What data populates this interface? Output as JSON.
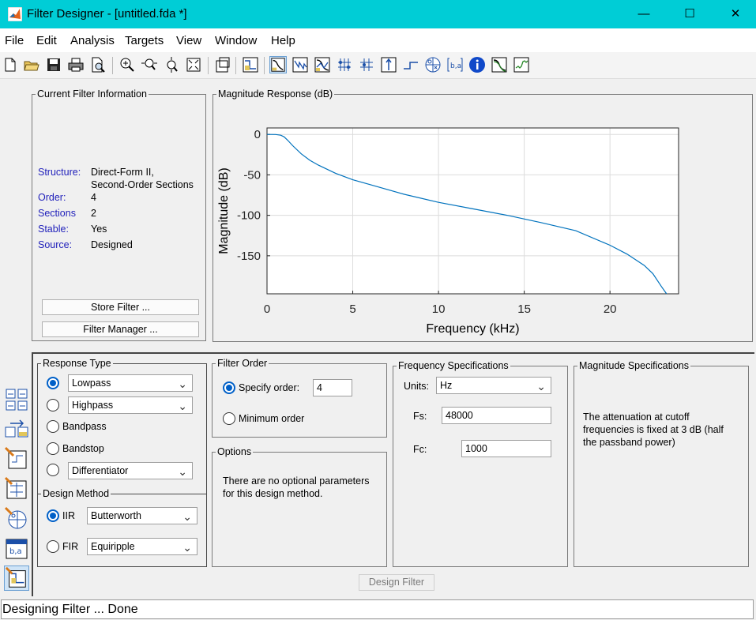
{
  "window": {
    "title": "Filter Designer -  [untitled.fda *]",
    "controls": {
      "minimize": "—",
      "maximize": "☐",
      "close": "✕"
    }
  },
  "menu": [
    "File",
    "Edit",
    "Analysis",
    "Targets",
    "View",
    "Window",
    "Help"
  ],
  "toolbar_icons": [
    "new-icon",
    "open-icon",
    "save-icon",
    "print-icon",
    "print-preview-icon",
    "zoom-in-icon",
    "zoom-x-icon",
    "zoom-y-icon",
    "full-view-icon",
    "new-figure-icon",
    "filter-specs-icon",
    "magnitude-response-icon",
    "phase-response-icon",
    "mag-phase-icon",
    "group-delay-icon",
    "phase-delay-icon",
    "impulse-response-icon",
    "step-response-icon",
    "pole-zero-icon",
    "coefficients-icon",
    "filter-info-icon",
    "magnitude-estimate-icon",
    "round-off-noise-icon"
  ],
  "current_filter": {
    "title": "Current Filter Information",
    "structure_label": "Structure:",
    "structure_value_1": "Direct-Form II,",
    "structure_value_2": "Second-Order Sections",
    "order_label": "Order:",
    "order_value": "4",
    "sections_label": "Sections",
    "sections_value": "2",
    "stable_label": "Stable:",
    "stable_value": "Yes",
    "source_label": "Source:",
    "source_value": "Designed",
    "store_button": "Store Filter ...",
    "manager_button": "Filter Manager ..."
  },
  "magnitude_panel": {
    "title": "Magnitude Response (dB)"
  },
  "chart_data": {
    "type": "line",
    "title": "",
    "xlabel": "Frequency (kHz)",
    "ylabel": "Magnitude (dB)",
    "xlim": [
      0,
      24
    ],
    "ylim": [
      -197,
      8
    ],
    "xticks": [
      "0",
      "5",
      "10",
      "15",
      "20"
    ],
    "yticks": [
      "0",
      "-50",
      "-100",
      "-150"
    ],
    "grid": true,
    "color": "#0072bd",
    "series": [
      {
        "x": [
          0,
          0.5,
          0.8,
          1,
          1.2,
          1.5,
          2,
          2.5,
          3,
          4,
          5,
          6,
          8,
          10,
          12,
          14,
          16,
          18,
          20,
          21,
          22,
          22.5,
          23,
          23.3
        ],
        "y": [
          0,
          -0.1,
          -1,
          -3,
          -7,
          -14,
          -24,
          -32,
          -38,
          -48,
          -56,
          -62,
          -74,
          -84,
          -92,
          -100,
          -109,
          -119,
          -137,
          -148,
          -162,
          -172,
          -188,
          -197
        ]
      }
    ]
  },
  "response_type": {
    "title": "Response Type",
    "lowpass_label": "Lowpass",
    "highpass_label": "Highpass",
    "bandpass_label": "Bandpass",
    "bandstop_label": "Bandstop",
    "differentiator_label": "Differentiator",
    "selected": "lowpass"
  },
  "design_method": {
    "title": "Design Method",
    "iir_label": "IIR",
    "iir_value": "Butterworth",
    "fir_label": "FIR",
    "fir_value": "Equiripple",
    "selected": "IIR"
  },
  "filter_order": {
    "title": "Filter Order",
    "specify_label": "Specify order:",
    "specify_value": "4",
    "minimum_label": "Minimum order",
    "selected": "specify"
  },
  "options": {
    "title": "Options",
    "text_1": "There are no optional parameters",
    "text_2": "for this design method."
  },
  "frequency_specs": {
    "title": "Frequency Specifications",
    "units_label": "Units:",
    "units_value": "Hz",
    "fs_label": "Fs:",
    "fs_value": "48000",
    "fc_label": "Fc:",
    "fc_value": "1000"
  },
  "magnitude_specs": {
    "title": "Magnitude Specifications",
    "text_1": "The attenuation at cutoff",
    "text_2": "frequencies is fixed at 3 dB (half",
    "text_3": "the passband power)"
  },
  "design_button": "Design Filter",
  "status": "Designing Filter ... Done",
  "sidebar_icons": [
    "transform-filter-icon",
    "create-multirate-icon",
    "realize-model-icon",
    "import-filter-icon",
    "pole-zero-editor-icon",
    "sidebar-coefficients-icon",
    "design-filter-icon"
  ]
}
